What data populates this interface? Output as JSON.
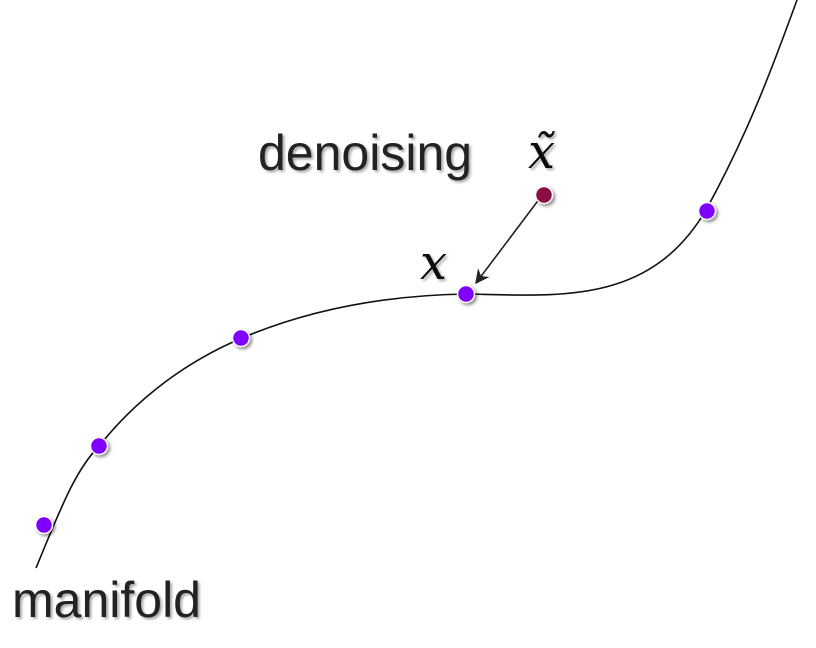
{
  "labels": {
    "denoising": "denoising",
    "x_tilde": "x̃",
    "x": "x",
    "manifold": "manifold"
  },
  "colors": {
    "curve": "#111111",
    "manifold_point": "#8000ff",
    "noisy_point": "#8b0a45",
    "arrow": "#222222",
    "shadow": "#b8b8b8"
  }
}
